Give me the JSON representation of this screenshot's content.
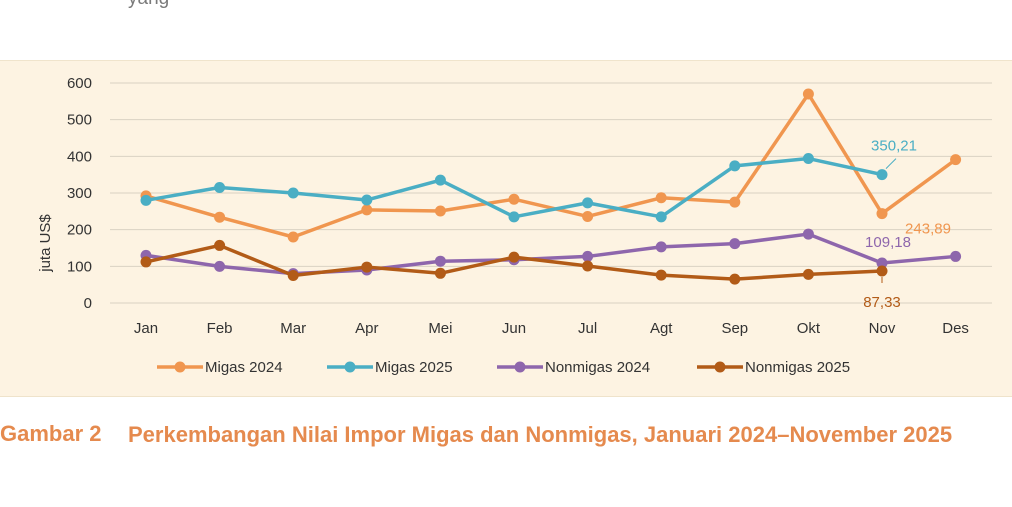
{
  "page": {
    "top_fragment": "yang ... (terpotong)"
  },
  "caption": {
    "label": "Gambar 2",
    "title": "Perkembangan Nilai Impor Migas dan Nonmigas, Januari 2024–November 2025"
  },
  "colors": {
    "panel_bg": "#fdf3e2",
    "grid": "#d9d2c3",
    "caption": "#e58a4e"
  },
  "chart_data": {
    "type": "line",
    "title": "",
    "xlabel": "",
    "ylabel": "juta US$",
    "ylim": [
      0,
      600
    ],
    "yticks": [
      "0",
      "100",
      "200",
      "300",
      "400",
      "500",
      "600"
    ],
    "grid": true,
    "legend_position": "bottom",
    "categories": [
      "Jan",
      "Feb",
      "Mar",
      "Apr",
      "Mei",
      "Jun",
      "Jul",
      "Agt",
      "Sep",
      "Okt",
      "Nov",
      "Des"
    ],
    "series": [
      {
        "name": "Migas 2024",
        "color": "#f0964f",
        "values": [
          292,
          234,
          180,
          254,
          251,
          283,
          236,
          287,
          275,
          570,
          243.89,
          391
        ]
      },
      {
        "name": "Migas 2025",
        "color": "#4aaec4",
        "values": [
          280,
          315,
          300,
          281,
          335,
          235,
          273,
          235,
          374,
          394,
          350.21,
          null
        ]
      },
      {
        "name": "Nonmigas 2024",
        "color": "#8e66ac",
        "values": [
          130,
          100,
          80,
          90,
          114,
          118,
          127,
          153,
          162,
          188,
          109.18,
          127
        ]
      },
      {
        "name": "Nonmigas 2025",
        "color": "#b25b17",
        "values": [
          112,
          157,
          75,
          98,
          81,
          125,
          101,
          76,
          65,
          78,
          87.33,
          null
        ]
      }
    ],
    "annotations": [
      {
        "text": "350,21",
        "series": "Migas 2025",
        "category": "Nov",
        "color": "#4aaec4"
      },
      {
        "text": "243,89",
        "series": "Migas 2024",
        "category": "Nov",
        "color": "#f0964f"
      },
      {
        "text": "109,18",
        "series": "Nonmigas 2024",
        "category": "Nov",
        "color": "#8e66ac"
      },
      {
        "text": "87,33",
        "series": "Nonmigas 2025",
        "category": "Nov",
        "color": "#b25b17"
      }
    ]
  }
}
